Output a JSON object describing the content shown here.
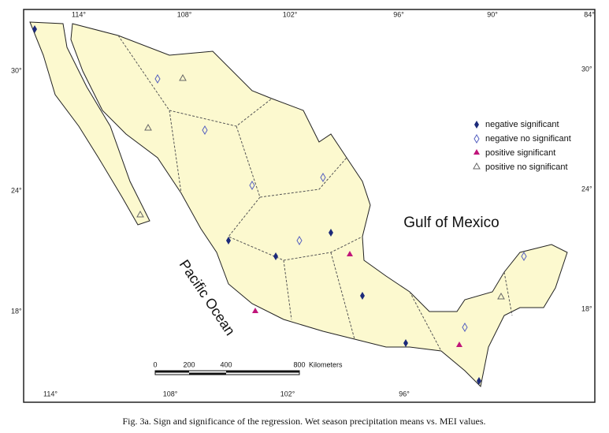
{
  "map": {
    "top_axis": [
      "114°",
      "108°",
      "102°",
      "96°",
      "90°",
      "84°"
    ],
    "bottom_axis": [
      "114°",
      "108°",
      "102°",
      "96°"
    ],
    "left_axis": [
      "30°",
      "24°",
      "18°"
    ],
    "right_axis": [
      "30°",
      "24°",
      "18°"
    ],
    "labels": {
      "gulf": "Gulf of Mexico",
      "pacific": "Pacific Ocean"
    },
    "legend": [
      "negative significant",
      "negative no significant",
      "positive significant",
      "positive no significant"
    ],
    "scale_bar": {
      "ticks": [
        "0",
        "200",
        "400",
        "800"
      ],
      "unit": "Kilometers"
    }
  },
  "caption": "Fig. 3a. Sign and significance of the regression. Wet season precipitation means vs. MEI values."
}
